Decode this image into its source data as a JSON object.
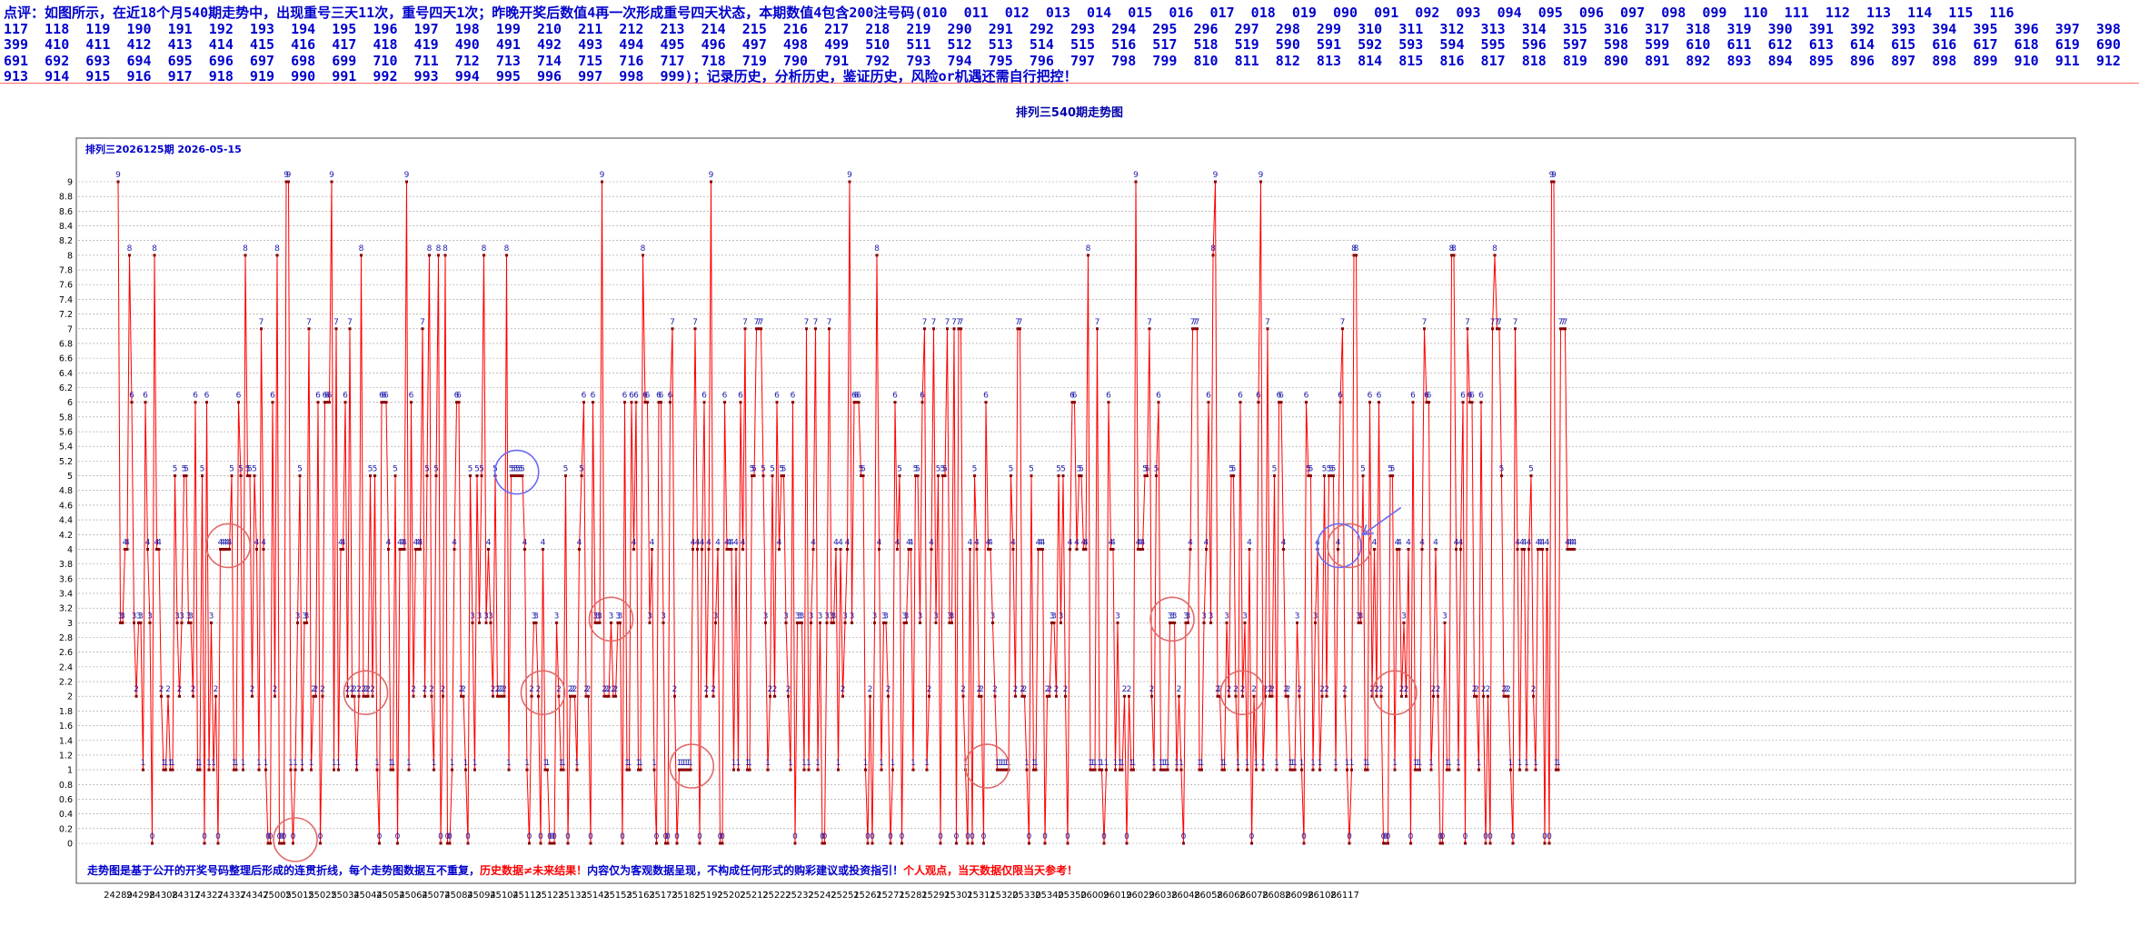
{
  "header": {
    "lines": [
      "点评：如图所示，在近18个月540期走势中，出现重号三天11次，重号四天1次；昨晚开奖后数值4再一次形成重号四天状态，本期数值4包含200注号码(010  011  012  013  014  015  016  017  018  019  090  091  092  093  094  095  096  097  098  099  110  111  112  113  114  115  116",
      "117  118  119  190  191  192  193  194  195  196  197  198  199  210  211  212  213  214  215  216  217  218  219  290  291  292  293  294  295  296  297  298  299  310  311  312  313  314  315  316  317  318  319  390  391  392  393  394  395  396  397  398",
      "399  410  411  412  413  414  415  416  417  418  419  490  491  492  493  494  495  496  497  498  499  510  511  512  513  514  515  516  517  518  519  590  591  592  593  594  595  596  597  598  599  610  611  612  613  614  615  616  617  618  619  690",
      "691  692  693  694  695  696  697  698  699  710  711  712  713  714  715  716  717  718  719  790  791  792  793  794  795  796  797  798  799  810  811  812  813  814  815  816  817  818  819  890  891  892  893  894  895  896  897  898  899  910  911  912",
      "913  914  915  916  917  918  919  990  991  992  993  994  995  996  997  998  999)；记录历史，分析历史，鉴证历史，风险or机遇还需自行把控！"
    ]
  },
  "chart_title": "排列三540期走势图",
  "legend_text": "排列三2026125期  2026-05-15",
  "footer": {
    "part1": "走势图是基于公开的开奖号码整理后形成的连贯折线，每个走势图数据互不重复，",
    "part2": "历史数据≠未来结果！",
    "part3": "内容仅为客观数据呈现，不构成任何形式的购彩建议或投资指引！",
    "part4": "个人观点，当天数据仅限当天参考！"
  },
  "colors": {
    "header_text": "#0000cc",
    "line": "#ff0000",
    "marker": "#8b0000",
    "value_label": "#1a1aaa",
    "grid": "#999999",
    "footer_blue": "#0000cc",
    "footer_red": "#ff0000",
    "circle_red": "#e06a6a",
    "circle_blue": "#6a6af0"
  },
  "chart_data": {
    "type": "line",
    "title": "排列三540期走势图",
    "ylim": [
      0,
      9
    ],
    "y_ticks": [
      "0",
      "0.2",
      "0.4",
      "0.6",
      "0.8",
      "1",
      "1.2",
      "1.4",
      "1.6",
      "1.8",
      "2",
      "2.2",
      "2.4",
      "2.6",
      "2.8",
      "3",
      "3.2",
      "3.4",
      "3.6",
      "3.8",
      "4",
      "4.2",
      "4.4",
      "4.6",
      "4.8",
      "5",
      "5.2",
      "5.4",
      "5.6",
      "5.8",
      "6",
      "6.2",
      "6.4",
      "6.6",
      "6.8",
      "7",
      "7.2",
      "7.4",
      "7.6",
      "7.8",
      "8",
      "8.2",
      "8.4",
      "8.6",
      "8.8",
      "9"
    ],
    "x_tick_labels": [
      "24289",
      "24298",
      "24308",
      "24317",
      "24327",
      "24337",
      "24347",
      "25005",
      "25015",
      "25025",
      "25034",
      "25044",
      "25054",
      "25064",
      "25074",
      "25084",
      "25094",
      "25104",
      "25113",
      "25123",
      "25133",
      "25143",
      "25153",
      "25163",
      "25173",
      "25182",
      "25192",
      "25202",
      "25212",
      "25222",
      "25232",
      "25242",
      "25251",
      "25261",
      "25271",
      "25281",
      "25291",
      "25301",
      "25311",
      "25320",
      "25330",
      "25340",
      "25350",
      "26009",
      "26019",
      "26029",
      "26038",
      "26048",
      "26058",
      "26068",
      "26078",
      "26088",
      "26098",
      "26108",
      "26117"
    ],
    "label_every": 10,
    "grid": "horizontal dotted",
    "values": [
      9,
      3,
      3,
      4,
      4,
      8,
      6,
      3,
      2,
      3,
      3,
      1,
      6,
      4,
      3,
      0,
      8,
      4,
      4,
      2,
      1,
      1,
      2,
      1,
      1,
      5,
      3,
      2,
      3,
      5,
      5,
      3,
      3,
      2,
      6,
      1,
      1,
      5,
      0,
      6,
      1,
      3,
      1,
      2,
      0,
      4,
      4,
      4,
      4,
      4,
      5,
      1,
      1,
      6,
      5,
      1,
      8,
      5,
      5,
      2,
      5,
      4,
      1,
      7,
      4,
      1,
      0,
      0,
      6,
      2,
      8,
      0,
      0,
      0,
      9,
      9,
      1,
      0,
      1,
      3,
      5,
      1,
      3,
      3,
      7,
      1,
      2,
      2,
      6,
      0,
      2,
      6,
      6,
      6,
      9,
      1,
      7,
      1,
      4,
      4,
      6,
      2,
      7,
      2,
      2,
      1,
      2,
      8,
      2,
      2,
      2,
      5,
      2,
      5,
      1,
      0,
      6,
      6,
      6,
      4,
      1,
      1,
      5,
      0,
      4,
      4,
      4,
      9,
      1,
      6,
      2,
      4,
      4,
      4,
      7,
      2,
      5,
      8,
      2,
      1,
      5,
      8,
      0,
      2,
      8,
      0,
      0,
      1,
      4,
      6,
      6,
      2,
      2,
      1,
      0,
      5,
      3,
      1,
      5,
      3,
      5,
      8,
      3,
      4,
      3,
      2,
      5,
      2,
      2,
      2,
      2,
      8,
      1,
      5,
      5,
      5,
      5,
      5,
      5,
      4,
      1,
      0,
      2,
      3,
      3,
      2,
      0,
      4,
      1,
      1,
      0,
      0,
      0,
      3,
      2,
      1,
      1,
      5,
      0,
      2,
      2,
      2,
      1,
      4,
      5,
      6,
      2,
      2,
      0,
      6,
      3,
      3,
      3,
      9,
      2,
      2,
      2,
      3,
      2,
      2,
      3,
      3,
      0,
      6,
      1,
      1,
      6,
      4,
      6,
      1,
      1,
      8,
      6,
      6,
      3,
      4,
      1,
      0,
      6,
      6,
      3,
      0,
      0,
      6,
      7,
      2,
      0,
      1,
      1,
      1,
      1,
      1,
      1,
      4,
      7,
      4,
      0,
      4,
      6,
      2,
      4,
      9,
      2,
      3,
      4,
      0,
      0,
      6,
      4,
      4,
      4,
      1,
      4,
      1,
      6,
      4,
      7,
      1,
      1,
      5,
      5,
      7,
      7,
      7,
      5,
      3,
      1,
      2,
      5,
      2,
      6,
      4,
      5,
      5,
      3,
      2,
      1,
      6,
      0,
      3,
      3,
      3,
      1,
      7,
      1,
      3,
      4,
      7,
      1,
      3,
      0,
      0,
      3,
      7,
      3,
      3,
      4,
      1,
      4,
      2,
      3,
      4,
      9,
      3,
      6,
      6,
      6,
      5,
      5,
      1,
      0,
      2,
      0,
      3,
      8,
      4,
      1,
      3,
      3,
      2,
      0,
      1,
      6,
      4,
      5,
      0,
      3,
      3,
      4,
      4,
      1,
      5,
      5,
      3,
      6,
      7,
      1,
      2,
      4,
      7,
      3,
      5,
      0,
      5,
      5,
      7,
      3,
      3,
      7,
      0,
      7,
      7,
      2,
      1,
      0,
      4,
      0,
      5,
      4,
      2,
      2,
      0,
      6,
      4,
      4,
      3,
      2,
      1,
      1,
      1,
      1,
      1,
      1,
      5,
      4,
      2,
      7,
      7,
      2,
      2,
      1,
      0,
      5,
      1,
      1,
      4,
      4,
      4,
      0,
      2,
      2,
      3,
      3,
      2,
      5,
      3,
      5,
      2,
      0,
      4,
      6,
      6,
      4,
      5,
      5,
      4,
      4,
      8,
      1,
      1,
      1,
      7,
      1,
      1,
      0,
      1,
      6,
      4,
      4,
      1,
      3,
      1,
      1,
      2,
      0,
      2,
      1,
      1,
      9,
      4,
      4,
      4,
      5,
      5,
      7,
      2,
      1,
      5,
      6,
      1,
      1,
      1,
      1,
      3,
      3,
      3,
      1,
      2,
      1,
      0,
      3,
      3,
      4,
      7,
      7,
      7,
      1,
      1,
      3,
      4,
      6,
      3,
      8,
      9,
      2,
      2,
      1,
      1,
      3,
      2,
      5,
      5,
      2,
      1,
      6,
      2,
      3,
      1,
      4,
      0,
      2,
      1,
      6,
      9,
      1,
      2,
      7,
      2,
      2,
      5,
      1,
      6,
      6,
      4,
      2,
      2,
      1,
      1,
      1,
      3,
      2,
      1,
      0,
      6,
      5,
      5,
      1,
      3,
      4,
      1,
      2,
      5,
      2,
      5,
      5,
      5,
      1,
      4,
      6,
      7,
      2,
      1,
      0,
      1,
      8,
      8,
      3,
      3,
      5,
      1,
      1,
      6,
      2,
      4,
      2,
      6,
      2,
      0,
      0,
      0,
      5,
      5,
      1,
      4,
      4,
      2,
      3,
      2,
      4,
      0,
      6,
      1,
      1,
      1,
      4,
      7,
      6,
      6,
      1,
      2,
      4,
      2,
      0,
      0,
      3,
      1,
      1,
      8,
      8,
      4,
      1,
      4,
      6,
      0,
      7,
      6,
      6,
      2,
      2,
      1,
      6,
      2,
      0,
      2,
      0,
      7,
      8,
      7,
      7,
      5,
      2,
      2,
      2,
      1,
      0,
      7,
      4,
      1,
      4,
      4,
      1,
      4,
      5,
      2,
      1,
      4,
      4,
      4,
      0,
      4,
      0,
      9,
      9,
      1,
      1,
      7,
      7,
      7,
      4,
      4,
      4,
      4
    ]
  },
  "annotations": {
    "red_circles": [
      {
        "label": "4",
        "start_index": 47,
        "run": 4
      },
      {
        "label": "0",
        "start_index": 77,
        "run": 3
      },
      {
        "label": "2",
        "start_index": 108,
        "run": 3
      },
      {
        "label": "2",
        "start_index": 186,
        "run": 3
      },
      {
        "label": "3",
        "start_index": 216,
        "run": 3
      },
      {
        "label": "1",
        "start_index": 251,
        "run": 4
      },
      {
        "label": "1",
        "start_index": 381,
        "run": 4
      },
      {
        "label": "3",
        "start_index": 463,
        "run": 3
      },
      {
        "label": "2",
        "start_index": 494,
        "run": 3
      },
      {
        "label": "4",
        "start_index": 541,
        "run": 3
      },
      {
        "label": "2",
        "start_index": 561,
        "run": 3
      }
    ],
    "blue_circles": [
      {
        "label": "5",
        "start_index": 174,
        "run": 4
      },
      {
        "label": "4",
        "start_index": 536,
        "run": 4
      }
    ]
  }
}
